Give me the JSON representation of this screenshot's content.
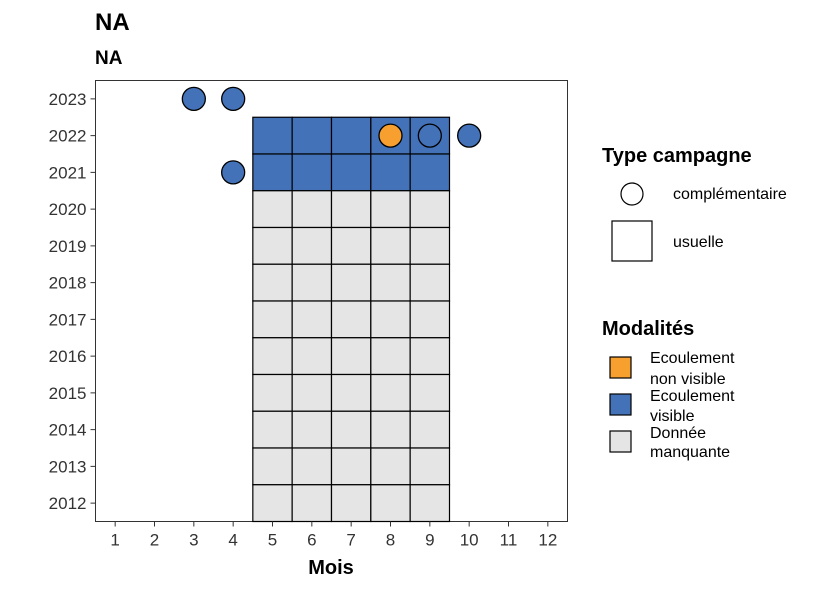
{
  "chart_data": {
    "type": "heatmap",
    "title": "NA",
    "subtitle": "NA",
    "xlabel": "Mois",
    "ylabel": "",
    "x_ticks": [
      "1",
      "2",
      "3",
      "4",
      "5",
      "6",
      "7",
      "8",
      "9",
      "10",
      "11",
      "12"
    ],
    "y_ticks": [
      "2012",
      "2013",
      "2014",
      "2015",
      "2016",
      "2017",
      "2018",
      "2019",
      "2020",
      "2021",
      "2022",
      "2023"
    ],
    "xlim": [
      0.5,
      12.5
    ],
    "ylim": [
      2011.5,
      2023.5
    ],
    "grid": false,
    "legend_position": "right",
    "colors": {
      "Ecoulement non visible": "#f7a030",
      "Ecoulement visible": "#4472b8",
      "Donnée manquante": "#e5e5e5"
    },
    "usual_campaigns": [
      {
        "year": 2022,
        "months": [
          5,
          6,
          7,
          8,
          9
        ],
        "modality": "Ecoulement visible"
      },
      {
        "year": 2021,
        "months": [
          5,
          6,
          7,
          8,
          9
        ],
        "modality": "Ecoulement visible"
      },
      {
        "year": 2020,
        "months": [
          5,
          6,
          7,
          8,
          9
        ],
        "modality": "Donnée manquante"
      },
      {
        "year": 2019,
        "months": [
          5,
          6,
          7,
          8,
          9
        ],
        "modality": "Donnée manquante"
      },
      {
        "year": 2018,
        "months": [
          5,
          6,
          7,
          8,
          9
        ],
        "modality": "Donnée manquante"
      },
      {
        "year": 2017,
        "months": [
          5,
          6,
          7,
          8,
          9
        ],
        "modality": "Donnée manquante"
      },
      {
        "year": 2016,
        "months": [
          5,
          6,
          7,
          8,
          9
        ],
        "modality": "Donnée manquante"
      },
      {
        "year": 2015,
        "months": [
          5,
          6,
          7,
          8,
          9
        ],
        "modality": "Donnée manquante"
      },
      {
        "year": 2014,
        "months": [
          5,
          6,
          7,
          8,
          9
        ],
        "modality": "Donnée manquante"
      },
      {
        "year": 2013,
        "months": [
          5,
          6,
          7,
          8,
          9
        ],
        "modality": "Donnée manquante"
      },
      {
        "year": 2012,
        "months": [
          5,
          6,
          7,
          8,
          9
        ],
        "modality": "Donnée manquante"
      }
    ],
    "complementary_campaigns": [
      {
        "year": 2023,
        "month": 3,
        "modality": "Ecoulement visible"
      },
      {
        "year": 2023,
        "month": 4,
        "modality": "Ecoulement visible"
      },
      {
        "year": 2022,
        "month": 8,
        "modality": "Ecoulement non visible"
      },
      {
        "year": 2022,
        "month": 9,
        "modality": "Ecoulement visible"
      },
      {
        "year": 2022,
        "month": 10,
        "modality": "Ecoulement visible"
      },
      {
        "year": 2021,
        "month": 4,
        "modality": "Ecoulement visible"
      }
    ],
    "legend_type": {
      "title": "Type campagne",
      "items": [
        {
          "shape": "circle",
          "label": "complémentaire"
        },
        {
          "shape": "square",
          "label": "usuelle"
        }
      ]
    },
    "legend_modalities": {
      "title": "Modalités",
      "items": [
        {
          "key": "Ecoulement non visible",
          "lines": [
            "Ecoulement",
            "non visible"
          ]
        },
        {
          "key": "Ecoulement visible",
          "lines": [
            "Ecoulement",
            "visible"
          ]
        },
        {
          "key": "Donnée manquante",
          "lines": [
            "Donnée",
            "manquante"
          ]
        }
      ]
    }
  }
}
